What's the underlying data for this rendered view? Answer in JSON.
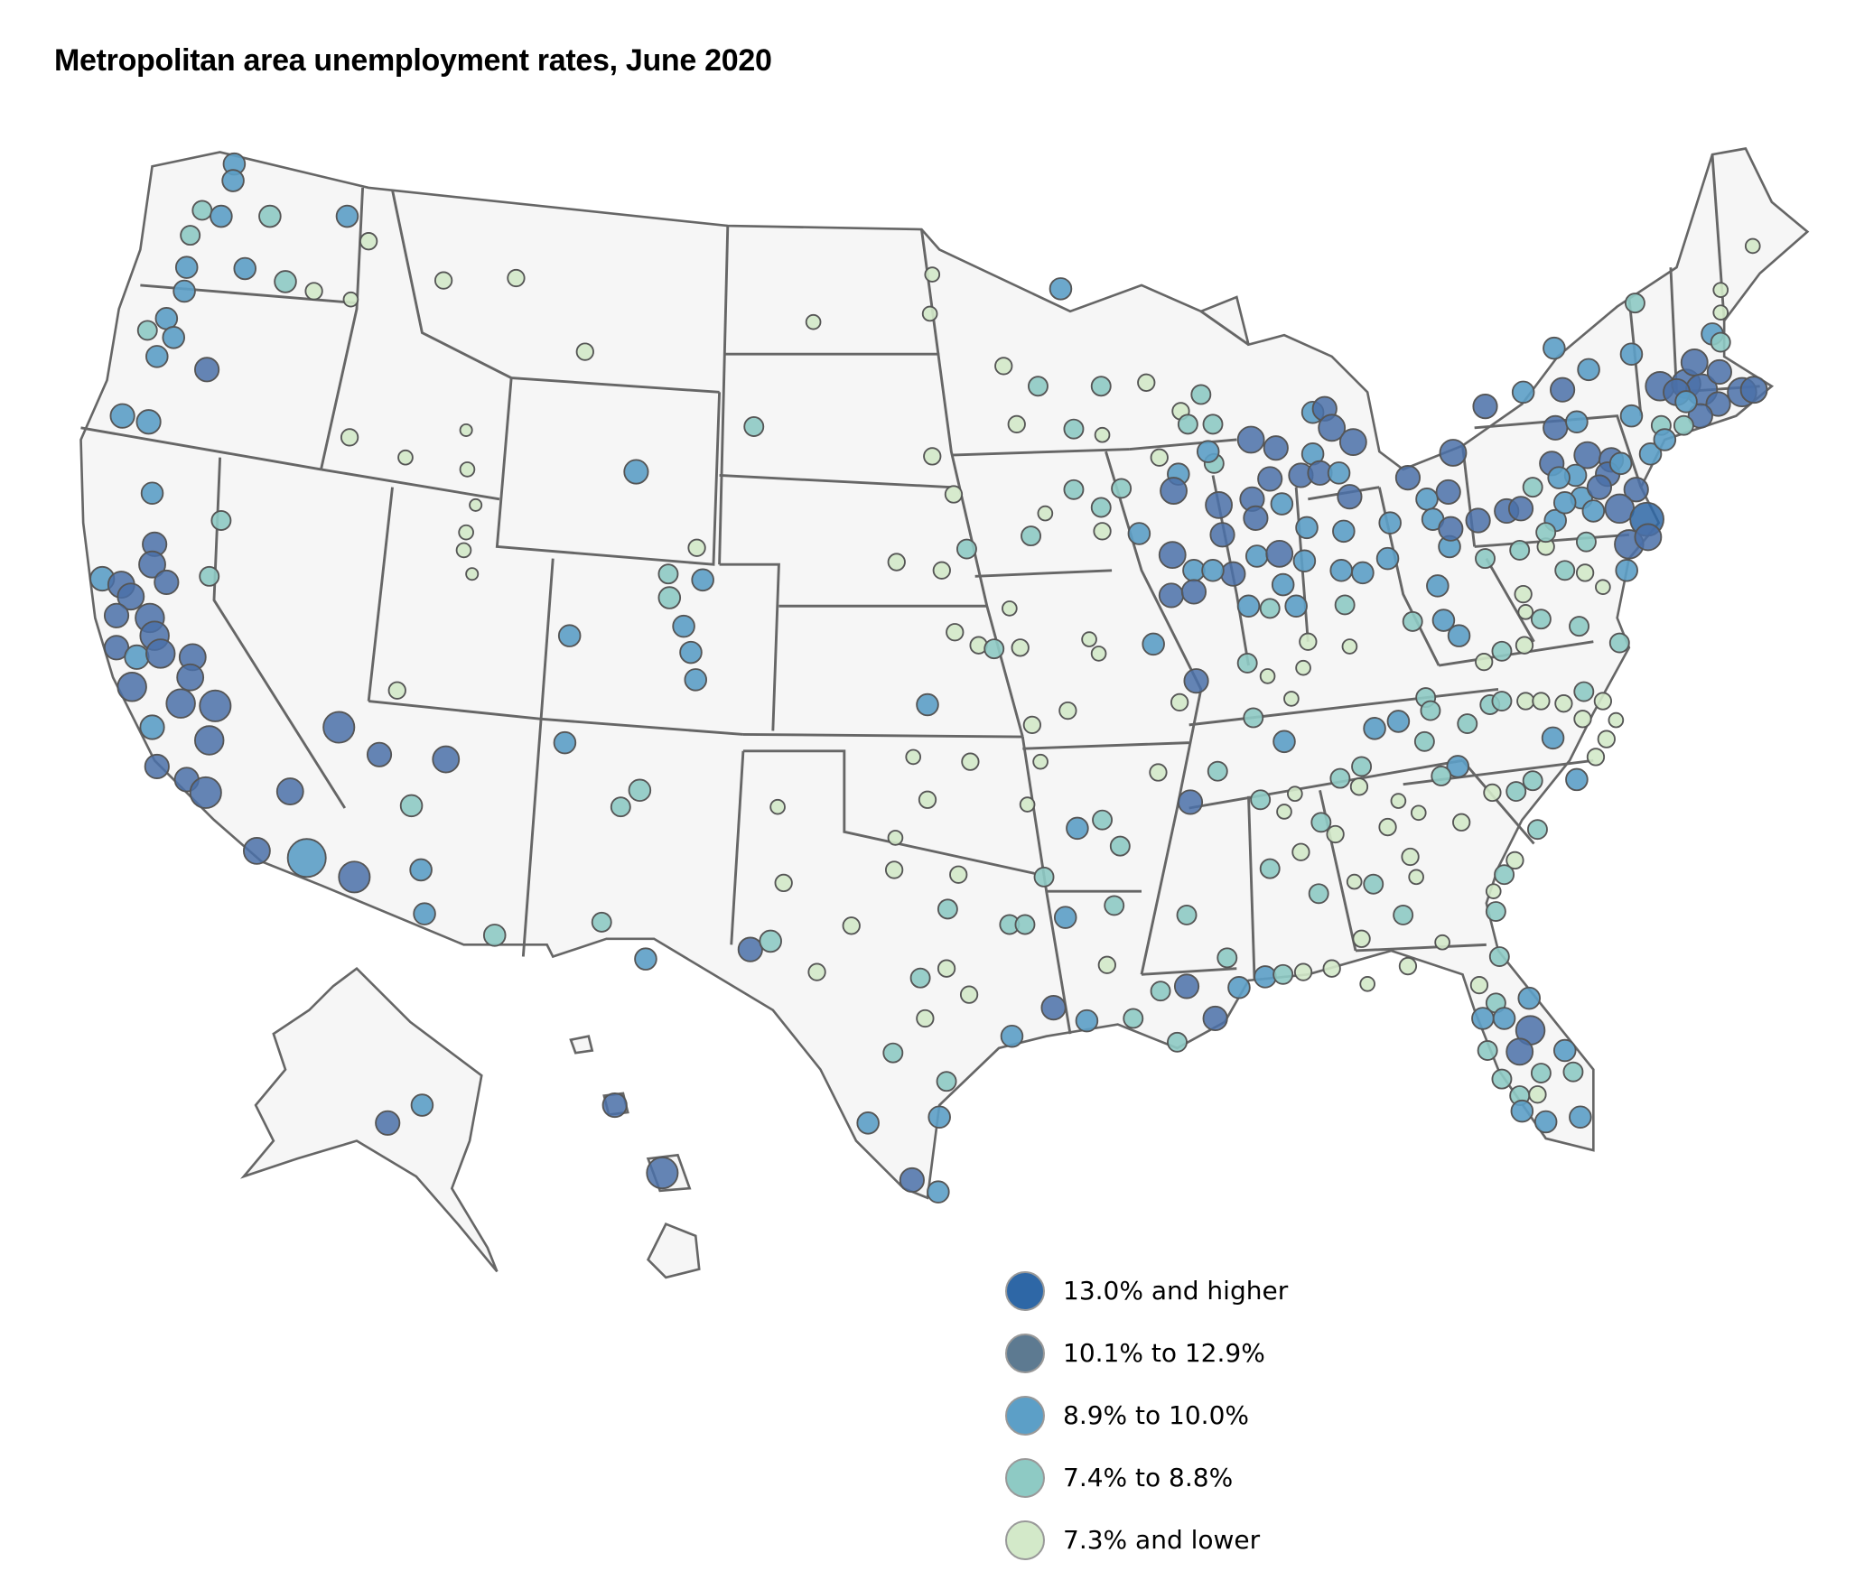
{
  "title": "Metropolitan area unemployment rates, June 2020",
  "map": {
    "land_color": "#f6f6f6",
    "border_color": "#666666"
  },
  "legend": {
    "items": [
      {
        "label": "13.0% and higher",
        "color": "#2e67a6"
      },
      {
        "label": "10.1% to 12.9%",
        "color": "#5d7a91"
      },
      {
        "label": "8.9% to 10.0%",
        "color": "#5c9fc7"
      },
      {
        "label": "7.4% to 8.8%",
        "color": "#8ecac4"
      },
      {
        "label": "7.3% and lower",
        "color": "#d3e9c9"
      }
    ]
  }
}
